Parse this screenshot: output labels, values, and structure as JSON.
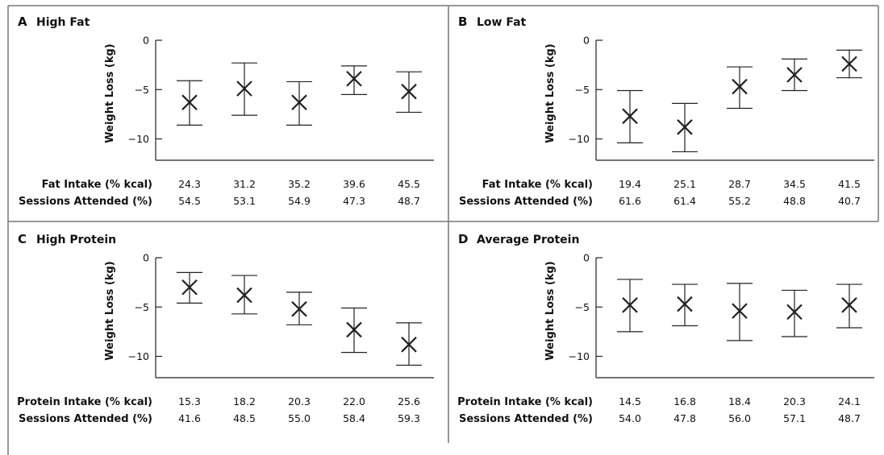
{
  "chart_data": [
    {
      "type": "scatter",
      "panel": "A",
      "title": "High Fat",
      "ylabel": "Weight Loss (kg)",
      "ylim": [
        -12,
        0
      ],
      "yticks": [
        0,
        -5,
        -10
      ],
      "points": [
        {
          "y": -6.3,
          "low": -8.6,
          "high": -4.1
        },
        {
          "y": -4.9,
          "low": -7.6,
          "high": -2.3
        },
        {
          "y": -6.3,
          "low": -8.6,
          "high": -4.2
        },
        {
          "y": -3.9,
          "low": -5.5,
          "high": -2.6
        },
        {
          "y": -5.2,
          "low": -7.3,
          "high": -3.2
        }
      ],
      "rows": [
        {
          "label": "Fat Intake (% kcal)",
          "values": [
            "24.3",
            "31.2",
            "35.2",
            "39.6",
            "45.5"
          ]
        },
        {
          "label": "Sessions Attended (%)",
          "values": [
            "54.5",
            "53.1",
            "54.9",
            "47.3",
            "48.7"
          ]
        }
      ]
    },
    {
      "type": "scatter",
      "panel": "B",
      "title": "Low Fat",
      "ylabel": "Weight Loss (kg)",
      "ylim": [
        -12,
        0
      ],
      "yticks": [
        0,
        -5,
        -10
      ],
      "points": [
        {
          "y": -7.7,
          "low": -10.4,
          "high": -5.1
        },
        {
          "y": -8.8,
          "low": -11.3,
          "high": -6.4
        },
        {
          "y": -4.7,
          "low": -6.9,
          "high": -2.7
        },
        {
          "y": -3.5,
          "low": -5.1,
          "high": -1.9
        },
        {
          "y": -2.4,
          "low": -3.8,
          "high": -1.0
        }
      ],
      "rows": [
        {
          "label": "Fat Intake (% kcal)",
          "values": [
            "19.4",
            "25.1",
            "28.7",
            "34.5",
            "41.5"
          ]
        },
        {
          "label": "Sessions Attended (%)",
          "values": [
            "61.6",
            "61.4",
            "55.2",
            "48.8",
            "40.7"
          ]
        }
      ]
    },
    {
      "type": "scatter",
      "panel": "C",
      "title": "High Protein",
      "ylabel": "Weight Loss (kg)",
      "ylim": [
        -12,
        0
      ],
      "yticks": [
        0,
        -5,
        -10
      ],
      "points": [
        {
          "y": -3.0,
          "low": -4.6,
          "high": -1.5
        },
        {
          "y": -3.8,
          "low": -5.7,
          "high": -1.8
        },
        {
          "y": -5.2,
          "low": -6.8,
          "high": -3.5
        },
        {
          "y": -7.3,
          "low": -9.6,
          "high": -5.1
        },
        {
          "y": -8.8,
          "low": -10.9,
          "high": -6.6
        }
      ],
      "rows": [
        {
          "label": "Protein Intake (% kcal)",
          "values": [
            "15.3",
            "18.2",
            "20.3",
            "22.0",
            "25.6"
          ]
        },
        {
          "label": "Sessions Attended (%)",
          "values": [
            "41.6",
            "48.5",
            "55.0",
            "58.4",
            "59.3"
          ]
        }
      ]
    },
    {
      "type": "scatter",
      "panel": "D",
      "title": "Average Protein",
      "ylabel": "Weight Loss (kg)",
      "ylim": [
        -12,
        0
      ],
      "yticks": [
        0,
        -5,
        -10
      ],
      "points": [
        {
          "y": -4.8,
          "low": -7.5,
          "high": -2.2
        },
        {
          "y": -4.7,
          "low": -6.9,
          "high": -2.7
        },
        {
          "y": -5.4,
          "low": -8.4,
          "high": -2.6
        },
        {
          "y": -5.5,
          "low": -8.0,
          "high": -3.3
        },
        {
          "y": -4.8,
          "low": -7.1,
          "high": -2.7
        }
      ],
      "rows": [
        {
          "label": "Protein Intake (% kcal)",
          "values": [
            "14.5",
            "16.8",
            "18.4",
            "20.3",
            "24.1"
          ]
        },
        {
          "label": "Sessions Attended (%)",
          "values": [
            "54.0",
            "47.8",
            "56.0",
            "57.1",
            "48.7"
          ]
        }
      ]
    }
  ]
}
